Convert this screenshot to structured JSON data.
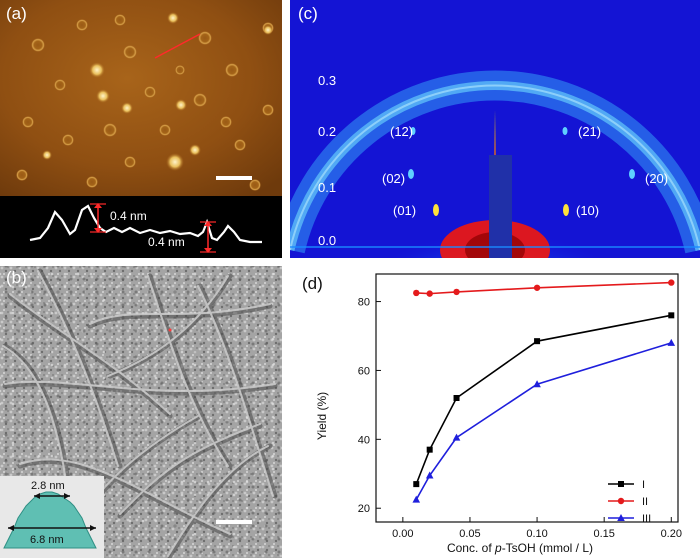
{
  "panel_a": {
    "label": "(a)",
    "profile_labels": [
      "0.4 nm",
      "0.4 nm"
    ]
  },
  "panel_b": {
    "label": "(b)",
    "inset_labels": [
      "2.8 nm",
      "6.8 nm"
    ]
  },
  "panel_c": {
    "label": "(c)",
    "y_ticks": [
      "0.3",
      "0.2",
      "0.1",
      "0.0"
    ],
    "peaks": [
      {
        "text": "(12)"
      },
      {
        "text": "(21)"
      },
      {
        "text": "(02)"
      },
      {
        "text": "(20)"
      },
      {
        "text": "(01)"
      },
      {
        "text": "(10)"
      }
    ]
  },
  "panel_d": {
    "label": "(d)"
  },
  "chart_data": {
    "type": "line",
    "xlabel_prefix": "Conc. of ",
    "xlabel_italic": "p",
    "xlabel_suffix": "-TsOH (mmol / L)",
    "ylabel": "Yield (%)",
    "xlim": [
      -0.02,
      0.205
    ],
    "ylim": [
      16,
      88
    ],
    "x_ticks": [
      "0.00",
      "0.05",
      "0.10",
      "0.15",
      "0.20"
    ],
    "y_ticks": [
      "20",
      "40",
      "60",
      "80"
    ],
    "legend_position": "bottom-right",
    "series": [
      {
        "name": "I",
        "color": "#000000",
        "marker": "square",
        "x": [
          0.01,
          0.02,
          0.04,
          0.1,
          0.2
        ],
        "y": [
          27,
          37,
          52,
          68.5,
          76
        ]
      },
      {
        "name": "II",
        "color": "#e41a1c",
        "marker": "circle",
        "x": [
          0.01,
          0.02,
          0.04,
          0.1,
          0.2
        ],
        "y": [
          82.5,
          82.3,
          82.8,
          84,
          85.5
        ]
      },
      {
        "name": "III",
        "color": "#1f1fdc",
        "marker": "triangle",
        "x": [
          0.01,
          0.02,
          0.04,
          0.1,
          0.2
        ],
        "y": [
          22.5,
          29.5,
          40.5,
          56,
          68
        ]
      }
    ]
  }
}
